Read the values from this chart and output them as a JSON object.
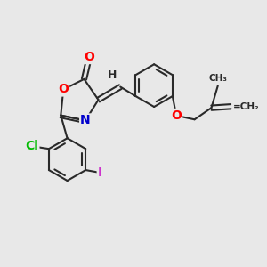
{
  "background_color": "#e8e8e8",
  "bond_color": "#2a2a2a",
  "atom_colors": {
    "O": "#ff0000",
    "N": "#0000cc",
    "Cl": "#00bb00",
    "I": "#cc33cc",
    "H": "#2a2a2a",
    "C": "#2a2a2a"
  },
  "bond_width": 1.5,
  "font_size": 10,
  "fig_width": 3.0,
  "fig_height": 3.0,
  "dpi": 100
}
